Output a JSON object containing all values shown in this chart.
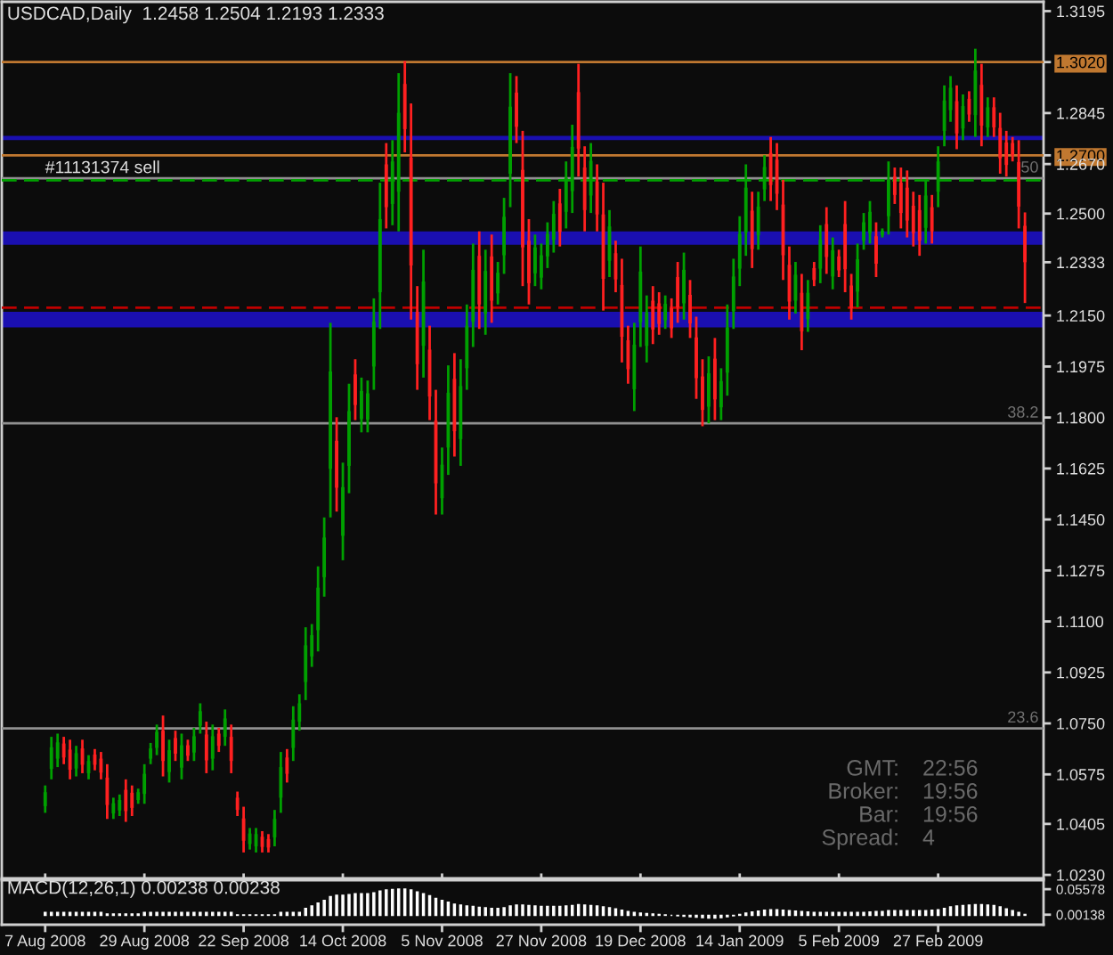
{
  "chart_data": [
    {
      "type": "candlestick",
      "title": "USDCAD,Daily  1.2458 1.2504 1.2193 1.2333",
      "tick_labels": "y",
      "grid": false,
      "categories": [
        "7 Aug 2008",
        null,
        null,
        null,
        null,
        null,
        null,
        null,
        null,
        null,
        null,
        null,
        null,
        null,
        null,
        null,
        "29 Aug 2008",
        null,
        null,
        null,
        null,
        null,
        null,
        null,
        null,
        null,
        null,
        null,
        null,
        null,
        null,
        null,
        "22 Sep 2008",
        null,
        null,
        null,
        null,
        null,
        null,
        null,
        null,
        null,
        null,
        null,
        null,
        null,
        null,
        null,
        "14 Oct 2008",
        null,
        null,
        null,
        null,
        null,
        null,
        null,
        null,
        null,
        null,
        null,
        null,
        null,
        null,
        null,
        "5 Nov 2008",
        null,
        null,
        null,
        null,
        null,
        null,
        null,
        null,
        null,
        null,
        null,
        null,
        null,
        null,
        null,
        "27 Nov 2008",
        null,
        null,
        null,
        null,
        null,
        null,
        null,
        null,
        null,
        null,
        null,
        null,
        null,
        null,
        null,
        "19 Dec 2008",
        null,
        null,
        null,
        null,
        null,
        null,
        null,
        null,
        null,
        null,
        null,
        null,
        null,
        null,
        null,
        "14 Jan 2009",
        null,
        null,
        null,
        null,
        null,
        null,
        null,
        null,
        null,
        null,
        null,
        null,
        null,
        null,
        null,
        "5 Feb 2009",
        null,
        null,
        null,
        null,
        null,
        null,
        null,
        null,
        null,
        null,
        null,
        null,
        null,
        null,
        null,
        "27 Feb 2009",
        null,
        null,
        null,
        null,
        null,
        null,
        null,
        null,
        null,
        null,
        null,
        null,
        null,
        null
      ],
      "ohlc": [
        [
          1.0466,
          1.0537,
          1.0443,
          1.0514
        ],
        [
          1.0594,
          1.0704,
          1.0558,
          1.0668
        ],
        [
          1.0629,
          1.0715,
          1.06,
          1.0685
        ],
        [
          1.0681,
          1.0704,
          1.061,
          1.0633
        ],
        [
          1.066,
          1.0694,
          1.0558,
          1.0591
        ],
        [
          1.0595,
          1.0673,
          1.0568,
          1.0648
        ],
        [
          1.0664,
          1.0694,
          1.0579,
          1.0608
        ],
        [
          1.0579,
          1.0641,
          1.0558,
          1.0621
        ],
        [
          1.0643,
          1.0662,
          1.0589,
          1.0608
        ],
        [
          1.0629,
          1.0652,
          1.0558,
          1.0581
        ],
        [
          1.0564,
          1.061,
          1.0422,
          1.047
        ],
        [
          1.0441,
          1.0495,
          1.0422,
          1.0476
        ],
        [
          1.0451,
          1.0506,
          1.0432,
          1.0487
        ],
        [
          1.0522,
          1.0558,
          1.0412,
          1.0449
        ],
        [
          1.0512,
          1.0537,
          1.0432,
          1.046
        ],
        [
          1.0487,
          1.0526,
          1.0474,
          1.0514
        ],
        [
          1.0508,
          1.061,
          1.0474,
          1.0577
        ],
        [
          1.0629,
          1.0683,
          1.061,
          1.0664
        ],
        [
          1.0666,
          1.0746,
          1.0641,
          1.0721
        ],
        [
          1.0725,
          1.0777,
          1.0568,
          1.0621
        ],
        [
          1.0583,
          1.0694,
          1.0547,
          1.0658
        ],
        [
          1.07,
          1.0725,
          1.0621,
          1.0646
        ],
        [
          1.0598,
          1.0715,
          1.0558,
          1.0675
        ],
        [
          1.0675,
          1.0694,
          1.0621,
          1.0639
        ],
        [
          1.065,
          1.0735,
          1.0621,
          1.0706
        ],
        [
          1.0742,
          1.0819,
          1.0715,
          1.0792
        ],
        [
          1.0712,
          1.0756,
          1.0579,
          1.0623
        ],
        [
          1.0629,
          1.0746,
          1.0589,
          1.0706
        ],
        [
          1.0715,
          1.0735,
          1.0652,
          1.0673
        ],
        [
          1.0704,
          1.0798,
          1.0673,
          1.0767
        ],
        [
          1.0704,
          1.0746,
          1.0579,
          1.0621
        ],
        [
          1.0495,
          1.0516,
          1.0432,
          1.0453
        ],
        [
          1.0424,
          1.0464,
          1.0307,
          1.0347
        ],
        [
          1.0336,
          1.0391,
          1.0317,
          1.0372
        ],
        [
          1.0328,
          1.0391,
          1.0307,
          1.037
        ],
        [
          1.0361,
          1.038,
          1.0307,
          1.0326
        ],
        [
          1.0353,
          1.037,
          1.0307,
          1.0324
        ],
        [
          1.0359,
          1.0453,
          1.0328,
          1.0422
        ],
        [
          1.0495,
          1.0652,
          1.0443,
          1.06
        ],
        [
          1.0633,
          1.0662,
          1.0547,
          1.0577
        ],
        [
          1.0666,
          1.0809,
          1.0621,
          1.0763
        ],
        [
          1.0756,
          1.085,
          1.0725,
          1.0819
        ],
        [
          1.0892,
          1.108,
          1.083,
          1.1018
        ],
        [
          1.098,
          1.1091,
          1.0944,
          1.1053
        ],
        [
          1.107,
          1.1289,
          1.0997,
          1.1216
        ],
        [
          1.1252,
          1.1457,
          1.1185,
          1.1388
        ],
        [
          1.1624,
          1.2125,
          1.1457,
          1.1958
        ],
        [
          1.172,
          1.1801,
          1.1477,
          1.1559
        ],
        [
          1.1394,
          1.1645,
          1.131,
          1.1561
        ],
        [
          1.1634,
          1.1916,
          1.154,
          1.1822
        ],
        [
          1.1948,
          1.2,
          1.1791,
          1.1843
        ],
        [
          1.1795,
          1.1937,
          1.1749,
          1.1891
        ],
        [
          1.1793,
          1.1927,
          1.1749,
          1.1883
        ],
        [
          1.1975,
          1.2209,
          1.1895,
          1.2129
        ],
        [
          1.223,
          1.2606,
          1.2104,
          1.2481
        ],
        [
          1.2669,
          1.2742,
          1.2449,
          1.2522
        ],
        [
          1.2533,
          1.2752,
          1.246,
          1.2679
        ],
        [
          1.2575,
          1.2982,
          1.2439,
          1.2846
        ],
        [
          1.2945,
          1.3024,
          1.271,
          1.279
        ],
        [
          1.2692,
          1.2878,
          1.2136,
          1.2322
        ],
        [
          1.2163,
          1.2251,
          1.1895,
          1.1983
        ],
        [
          1.2046,
          1.2376,
          1.1937,
          1.2267
        ],
        [
          1.2033,
          1.2115,
          1.1791,
          1.1872
        ],
        [
          1.1789,
          1.1895,
          1.1467,
          1.1574
        ],
        [
          1.1523,
          1.1697,
          1.1467,
          1.1638
        ],
        [
          1.1697,
          1.1979,
          1.1603,
          1.1885
        ],
        [
          1.1933,
          1.2021,
          1.1666,
          1.1753
        ],
        [
          1.1726,
          1.2,
          1.1634,
          1.1908
        ],
        [
          1.1969,
          1.2188,
          1.1895,
          1.2115
        ],
        [
          1.2129,
          1.2397,
          1.2042,
          1.2307
        ],
        [
          1.2355,
          1.2439,
          1.2104,
          1.2188
        ],
        [
          1.2157,
          1.2376,
          1.2084,
          1.2303
        ],
        [
          1.2353,
          1.2428,
          1.2125,
          1.2201
        ],
        [
          1.2226,
          1.2334,
          1.2188,
          1.2297
        ],
        [
          1.2357,
          1.2554,
          1.2293,
          1.2489
        ],
        [
          1.2637,
          1.2982,
          1.2522,
          1.2867
        ],
        [
          1.2915,
          1.2972,
          1.2742,
          1.2798
        ],
        [
          1.265,
          1.2784,
          1.2251,
          1.2384
        ],
        [
          1.2407,
          1.2481,
          1.2188,
          1.2261
        ],
        [
          1.2295,
          1.2428,
          1.2251,
          1.2384
        ],
        [
          1.228,
          1.2397,
          1.224,
          1.2357
        ],
        [
          1.2353,
          1.247,
          1.2313,
          1.243
        ],
        [
          1.241,
          1.2543,
          1.2366,
          1.2499
        ],
        [
          1.2535,
          1.2585,
          1.2387,
          1.2437
        ],
        [
          1.2506,
          1.2679,
          1.2449,
          1.2623
        ],
        [
          1.2577,
          1.2805,
          1.2502,
          1.2729
        ],
        [
          1.2917,
          1.3014,
          1.2627,
          1.2723
        ],
        [
          1.2658,
          1.2731,
          1.2439,
          1.2512
        ],
        [
          1.2562,
          1.2742,
          1.2502,
          1.2681
        ],
        [
          1.261,
          1.2669,
          1.2439,
          1.2497
        ],
        [
          1.2497,
          1.2606,
          1.2167,
          1.2276
        ],
        [
          1.2338,
          1.2512,
          1.2282,
          1.2456
        ],
        [
          1.2364,
          1.2407,
          1.223,
          1.2274
        ],
        [
          1.2255,
          1.2345,
          1.1989,
          1.2077
        ],
        [
          1.2065,
          1.2115,
          1.1916,
          1.1966
        ],
        [
          1.1897,
          1.2125,
          1.1822,
          1.205
        ],
        [
          1.2127,
          1.2387,
          1.2042,
          1.2301
        ],
        [
          1.2046,
          1.2219,
          1.1989,
          1.2161
        ],
        [
          1.2201,
          1.2251,
          1.2052,
          1.2102
        ],
        [
          1.2192,
          1.223,
          1.2084,
          1.2121
        ],
        [
          1.2134,
          1.2219,
          1.2104,
          1.219
        ],
        [
          1.2175,
          1.2209,
          1.2073,
          1.2106
        ],
        [
          1.2282,
          1.2334,
          1.2125,
          1.2178
        ],
        [
          1.2192,
          1.2366,
          1.2136,
          1.2307
        ],
        [
          1.2221,
          1.2272,
          1.2073,
          1.2123
        ],
        [
          1.2075,
          1.2146,
          1.1864,
          1.1935
        ],
        [
          1.1941,
          1.2,
          1.177,
          1.1826
        ],
        [
          1.1837,
          1.201,
          1.178,
          1.1952
        ],
        [
          1.2002,
          1.2073,
          1.1791,
          1.1862
        ],
        [
          1.1835,
          1.1969,
          1.1791,
          1.1925
        ],
        [
          1.1954,
          1.2188,
          1.1875,
          1.2109
        ],
        [
          1.2165,
          1.2345,
          1.2104,
          1.2284
        ],
        [
          1.2311,
          1.2491,
          1.2251,
          1.243
        ],
        [
          1.2435,
          1.2669,
          1.2355,
          1.2589
        ],
        [
          1.251,
          1.2575,
          1.2313,
          1.2378
        ],
        [
          1.2426,
          1.2575,
          1.2376,
          1.2524
        ],
        [
          1.2583,
          1.27,
          1.2543,
          1.266
        ],
        [
          1.2708,
          1.2763,
          1.2543,
          1.2598
        ],
        [
          1.2685,
          1.2742,
          1.2512,
          1.2568
        ],
        [
          1.2531,
          1.2616,
          1.2272,
          1.2357
        ],
        [
          1.2324,
          1.2387,
          1.2136,
          1.2198
        ],
        [
          1.2201,
          1.2334,
          1.2157,
          1.229
        ],
        [
          1.2228,
          1.2293,
          1.2031,
          1.2096
        ],
        [
          1.2138,
          1.2272,
          1.2094,
          1.2228
        ],
        [
          1.2313,
          1.2334,
          1.2251,
          1.2272
        ],
        [
          1.2311,
          1.246,
          1.2261,
          1.241
        ],
        [
          1.2464,
          1.2522,
          1.2293,
          1.2351
        ],
        [
          1.2284,
          1.2418,
          1.224,
          1.2374
        ],
        [
          1.2353,
          1.2376,
          1.2282,
          1.2305
        ],
        [
          1.2464,
          1.2543,
          1.223,
          1.2309
        ],
        [
          1.2253,
          1.2293,
          1.2136,
          1.2175
        ],
        [
          1.2232,
          1.2397,
          1.2178,
          1.2343
        ],
        [
          1.2407,
          1.2502,
          1.2376,
          1.247
        ],
        [
          1.2433,
          1.2543,
          1.2397,
          1.2506
        ],
        [
          1.2422,
          1.247,
          1.2282,
          1.2328
        ],
        [
          1.2426,
          1.2449,
          1.2418,
          1.2441
        ],
        [
          1.2491,
          1.2679,
          1.2428,
          1.2616
        ],
        [
          1.2627,
          1.2658,
          1.2533,
          1.2564
        ],
        [
          1.2606,
          1.2658,
          1.2449,
          1.2502
        ],
        [
          1.2589,
          1.2648,
          1.2418,
          1.2476
        ],
        [
          1.2527,
          1.2575,
          1.2387,
          1.2433
        ],
        [
          1.2512,
          1.2564,
          1.2355,
          1.2407
        ],
        [
          1.2451,
          1.2616,
          1.2397,
          1.2562
        ],
        [
          1.2522,
          1.2564,
          1.2397,
          1.2439
        ],
        [
          1.2575,
          1.2731,
          1.2522,
          1.2679
        ],
        [
          1.2784,
          1.294,
          1.2731,
          1.2888
        ],
        [
          1.2855,
          1.2972,
          1.2815,
          1.2932
        ],
        [
          1.2886,
          1.294,
          1.2721,
          1.2775
        ],
        [
          1.2792,
          1.2909,
          1.2752,
          1.2869
        ],
        [
          1.2894,
          1.292,
          1.2815,
          1.284
        ],
        [
          1.2838,
          1.3066,
          1.2763,
          1.2991
        ],
        [
          1.2942,
          1.3014,
          1.2731,
          1.2802
        ],
        [
          1.2796,
          1.2899,
          1.2763,
          1.2865
        ],
        [
          1.2865,
          1.2899,
          1.2763,
          1.2796
        ],
        [
          1.2794,
          1.2846,
          1.2637,
          1.269
        ],
        [
          1.2744,
          1.2784,
          1.2627,
          1.2667
        ],
        [
          1.2742,
          1.2763,
          1.2679,
          1.27
        ],
        [
          1.2677,
          1.2752,
          1.2449,
          1.2524
        ],
        [
          1.2458,
          1.2504,
          1.2193,
          1.2333
        ]
      ],
      "ylim": [
        1.0218,
        1.3227
      ],
      "yticks": [
        1.3195,
        {
          "value": 1.302,
          "label": "1.3020"
        },
        1.2845,
        {
          "value": 1.27,
          "label": "1.2700"
        },
        {
          "value": 1.267,
          "label": "1.2670"
        },
        {
          "value": 1.25,
          "label": "1.2500"
        },
        1.2333,
        {
          "value": 1.215,
          "label": "1.2150"
        },
        1.1975,
        {
          "value": 1.18,
          "label": "1.1800"
        },
        1.1625,
        {
          "value": 1.145,
          "label": "1.1450"
        },
        1.1275,
        {
          "value": 1.11,
          "label": "1.1100"
        },
        1.0925,
        {
          "value": 1.075,
          "label": "1.0750"
        },
        1.0575,
        1.0405,
        {
          "value": 1.023,
          "label": "1.0230"
        }
      ],
      "ref_lines": [
        {
          "axis": "y",
          "value": 1.302,
          "color": "#c07830",
          "line_style": "solid"
        },
        {
          "axis": "y",
          "value": 1.27,
          "color": "#c07830",
          "line_style": "solid"
        },
        {
          "axis": "y",
          "value": 1.2621,
          "color": "#909090",
          "line_style": "solid"
        },
        {
          "axis": "y",
          "value": 1.2614,
          "color": "#00a000",
          "line_style": "dashed"
        },
        {
          "axis": "y",
          "value": 1.2177,
          "color": "#c00000",
          "line_style": "dashed"
        },
        {
          "axis": "y",
          "value": 1.178,
          "color": "#909090",
          "line_style": "solid"
        },
        {
          "axis": "y",
          "value": 1.0733,
          "color": "#909090",
          "line_style": "solid"
        }
      ],
      "bands": [
        {
          "axis": "y",
          "from": 1.2752,
          "to": 1.2767,
          "color": "#1a0fb0"
        },
        {
          "axis": "y",
          "from": 1.2393,
          "to": 1.2439,
          "color": "#1a0fb0"
        },
        {
          "axis": "y",
          "from": 1.2109,
          "to": 1.2163,
          "color": "#1a0fb0"
        }
      ],
      "annotations": [
        {
          "text": "#11131374 sell",
          "x": "7 Aug 2008",
          "y": 1.2614
        },
        {
          "text": "50",
          "y": 1.2621
        },
        {
          "text": "38.2",
          "y": 1.178
        },
        {
          "text": "23.6",
          "y": 1.0733
        },
        "GMT: 22:56",
        "Broker: 19:56",
        "Bar: 19:56",
        "Spread: 4"
      ]
    },
    {
      "type": "bar",
      "title": "MACD(12,26,1) 0.00238 0.00238",
      "grid": false,
      "categories": [
        "7 Aug 2008",
        null,
        null,
        null,
        null,
        null,
        null,
        null,
        null,
        null,
        null,
        null,
        null,
        null,
        null,
        null,
        "29 Aug 2008",
        null,
        null,
        null,
        null,
        null,
        null,
        null,
        null,
        null,
        null,
        null,
        null,
        null,
        null,
        null,
        "22 Sep 2008",
        null,
        null,
        null,
        null,
        null,
        null,
        null,
        null,
        null,
        null,
        null,
        null,
        null,
        null,
        null,
        "14 Oct 2008",
        null,
        null,
        null,
        null,
        null,
        null,
        null,
        null,
        null,
        null,
        null,
        null,
        null,
        null,
        null,
        "5 Nov 2008",
        null,
        null,
        null,
        null,
        null,
        null,
        null,
        null,
        null,
        null,
        null,
        null,
        null,
        null,
        null,
        "27 Nov 2008",
        null,
        null,
        null,
        null,
        null,
        null,
        null,
        null,
        null,
        null,
        null,
        null,
        null,
        null,
        null,
        "19 Dec 2008",
        null,
        null,
        null,
        null,
        null,
        null,
        null,
        null,
        null,
        null,
        null,
        null,
        null,
        null,
        null,
        "14 Jan 2009",
        null,
        null,
        null,
        null,
        null,
        null,
        null,
        null,
        null,
        null,
        null,
        null,
        null,
        null,
        null,
        "5 Feb 2009",
        null,
        null,
        null,
        null,
        null,
        null,
        null,
        null,
        null,
        null,
        null,
        null,
        null,
        null,
        null,
        "27 Feb 2009",
        null,
        null,
        null,
        null,
        null,
        null,
        null,
        null,
        null,
        null,
        null,
        null,
        null,
        null
      ],
      "series": [
        {
          "color": "#ffffff",
          "values": [
            0.006,
            0.006,
            0.006,
            0.006,
            0.006,
            0.006,
            0.006,
            0.006,
            0.006,
            0.006,
            0.003,
            0.003,
            0.003,
            0.003,
            0.003,
            0.003,
            0.006,
            0.006,
            0.006,
            0.006,
            0.006,
            0.006,
            0.006,
            0.006,
            0.006,
            0.006,
            0.006,
            0.006,
            0.006,
            0.006,
            0.006,
            0.001,
            0.001,
            0.001,
            0.001,
            0.001,
            0.001,
            0.001,
            0.006,
            0.006,
            0.006,
            0.006,
            0.015,
            0.02,
            0.026,
            0.032,
            0.04,
            0.043,
            0.043,
            0.044,
            0.046,
            0.046,
            0.046,
            0.048,
            0.052,
            0.054,
            0.055,
            0.056,
            0.056,
            0.054,
            0.05,
            0.046,
            0.042,
            0.036,
            0.032,
            0.028,
            0.024,
            0.022,
            0.02,
            0.019,
            0.017,
            0.016,
            0.015,
            0.015,
            0.016,
            0.02,
            0.022,
            0.022,
            0.021,
            0.02,
            0.019,
            0.019,
            0.019,
            0.019,
            0.02,
            0.021,
            0.023,
            0.022,
            0.021,
            0.02,
            0.018,
            0.016,
            0.014,
            0.011,
            0.008,
            0.006,
            0.005,
            0.004,
            0.003,
            0.002,
            0.001,
            0.0,
            -0.001,
            -0.002,
            -0.003,
            -0.004,
            -0.005,
            -0.006,
            -0.006,
            -0.005,
            -0.003,
            -0.001,
            0.002,
            0.005,
            0.007,
            0.009,
            0.011,
            0.012,
            0.012,
            0.011,
            0.01,
            0.009,
            0.008,
            0.007,
            0.006,
            0.006,
            0.006,
            0.006,
            0.006,
            0.006,
            0.006,
            0.006,
            0.006,
            0.007,
            0.008,
            0.008,
            0.01,
            0.01,
            0.01,
            0.01,
            0.01,
            0.01,
            0.01,
            0.011,
            0.012,
            0.015,
            0.018,
            0.02,
            0.021,
            0.022,
            0.023,
            0.023,
            0.022,
            0.021,
            0.018,
            0.014,
            0.01,
            0.006,
            0.002
          ]
        }
      ],
      "ylim": [
        -0.02,
        0.075
      ],
      "yticks": [
        0.05578,
        0.00138
      ]
    }
  ]
}
